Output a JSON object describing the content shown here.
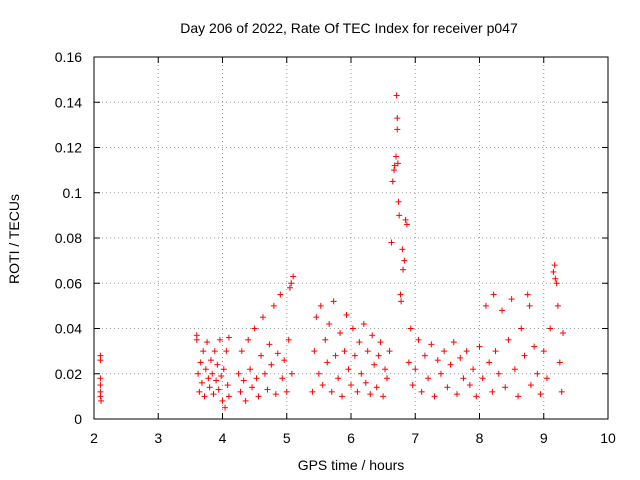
{
  "chart_data": {
    "type": "scatter",
    "title": "Day 206 of 2022, Rate Of TEC Index for receiver p047",
    "xlabel": "GPS time / hours",
    "ylabel": "ROTI / TECUs",
    "xlim": [
      2,
      10
    ],
    "ylim": [
      0,
      0.16
    ],
    "xticks": [
      2,
      3,
      4,
      5,
      6,
      7,
      8,
      9,
      10
    ],
    "xtick_labels": [
      "2",
      "3",
      "4",
      "5",
      "6",
      "7",
      "8",
      "9",
      "10"
    ],
    "yticks": [
      0,
      0.02,
      0.04,
      0.06,
      0.08,
      0.1,
      0.12,
      0.14,
      0.16
    ],
    "ytick_labels": [
      "0",
      "0.02",
      "0.04",
      "0.06",
      "0.08",
      "0.1",
      "0.12",
      "0.14",
      "0.16"
    ],
    "grid": true,
    "marker": "+",
    "marker_color": "#ff0000",
    "series": [
      {
        "name": "ROTI",
        "points": [
          [
            2.1,
            0.028
          ],
          [
            2.1,
            0.026
          ],
          [
            2.1,
            0.018
          ],
          [
            2.1,
            0.015
          ],
          [
            2.1,
            0.012
          ],
          [
            2.1,
            0.01
          ],
          [
            2.11,
            0.008
          ],
          [
            3.6,
            0.037
          ],
          [
            3.6,
            0.035
          ],
          [
            3.62,
            0.02
          ],
          [
            3.64,
            0.012
          ],
          [
            3.66,
            0.025
          ],
          [
            3.68,
            0.016
          ],
          [
            3.7,
            0.03
          ],
          [
            3.72,
            0.01
          ],
          [
            3.74,
            0.022
          ],
          [
            3.76,
            0.034
          ],
          [
            3.78,
            0.018
          ],
          [
            3.8,
            0.014
          ],
          [
            3.82,
            0.026
          ],
          [
            3.84,
            0.02
          ],
          [
            3.86,
            0.011
          ],
          [
            3.88,
            0.03
          ],
          [
            3.9,
            0.017
          ],
          [
            3.92,
            0.024
          ],
          [
            3.94,
            0.013
          ],
          [
            3.96,
            0.035
          ],
          [
            3.98,
            0.019
          ],
          [
            4.0,
            0.008
          ],
          [
            4.02,
            0.022
          ],
          [
            4.04,
            0.005
          ],
          [
            4.06,
            0.03
          ],
          [
            4.08,
            0.015
          ],
          [
            4.1,
            0.036
          ],
          [
            4.1,
            0.01
          ],
          [
            4.25,
            0.02
          ],
          [
            4.28,
            0.012
          ],
          [
            4.3,
            0.03
          ],
          [
            4.33,
            0.017
          ],
          [
            4.36,
            0.008
          ],
          [
            4.4,
            0.035
          ],
          [
            4.43,
            0.022
          ],
          [
            4.46,
            0.014
          ],
          [
            4.5,
            0.04
          ],
          [
            4.53,
            0.018
          ],
          [
            4.56,
            0.01
          ],
          [
            4.6,
            0.028
          ],
          [
            4.63,
            0.045
          ],
          [
            4.66,
            0.02
          ],
          [
            4.7,
            0.013
          ],
          [
            4.73,
            0.033
          ],
          [
            4.76,
            0.024
          ],
          [
            4.8,
            0.05
          ],
          [
            4.83,
            0.011
          ],
          [
            4.86,
            0.029
          ],
          [
            4.9,
            0.055
          ],
          [
            4.93,
            0.018
          ],
          [
            4.96,
            0.026
          ],
          [
            5.0,
            0.012
          ],
          [
            5.03,
            0.035
          ],
          [
            5.05,
            0.058
          ],
          [
            5.07,
            0.06
          ],
          [
            5.08,
            0.02
          ],
          [
            5.1,
            0.063
          ],
          [
            5.4,
            0.012
          ],
          [
            5.43,
            0.03
          ],
          [
            5.46,
            0.045
          ],
          [
            5.5,
            0.02
          ],
          [
            5.53,
            0.05
          ],
          [
            5.56,
            0.015
          ],
          [
            5.6,
            0.035
          ],
          [
            5.63,
            0.025
          ],
          [
            5.66,
            0.042
          ],
          [
            5.7,
            0.012
          ],
          [
            5.73,
            0.052
          ],
          [
            5.76,
            0.028
          ],
          [
            5.8,
            0.018
          ],
          [
            5.83,
            0.038
          ],
          [
            5.86,
            0.01
          ],
          [
            5.9,
            0.03
          ],
          [
            5.93,
            0.046
          ],
          [
            5.96,
            0.022
          ],
          [
            6.0,
            0.015
          ],
          [
            6.03,
            0.04
          ],
          [
            6.06,
            0.028
          ],
          [
            6.1,
            0.012
          ],
          [
            6.13,
            0.034
          ],
          [
            6.16,
            0.02
          ],
          [
            6.2,
            0.042
          ],
          [
            6.23,
            0.016
          ],
          [
            6.26,
            0.03
          ],
          [
            6.3,
            0.011
          ],
          [
            6.33,
            0.037
          ],
          [
            6.36,
            0.024
          ],
          [
            6.4,
            0.014
          ],
          [
            6.43,
            0.028
          ],
          [
            6.46,
            0.034
          ],
          [
            6.5,
            0.01
          ],
          [
            6.53,
            0.022
          ],
          [
            6.56,
            0.018
          ],
          [
            6.6,
            0.03
          ],
          [
            6.63,
            0.078
          ],
          [
            6.65,
            0.105
          ],
          [
            6.67,
            0.11
          ],
          [
            6.68,
            0.112
          ],
          [
            6.7,
            0.116
          ],
          [
            6.71,
            0.143
          ],
          [
            6.72,
            0.133
          ],
          [
            6.72,
            0.128
          ],
          [
            6.73,
            0.113
          ],
          [
            6.74,
            0.096
          ],
          [
            6.75,
            0.09
          ],
          [
            6.77,
            0.055
          ],
          [
            6.78,
            0.052
          ],
          [
            6.8,
            0.075
          ],
          [
            6.81,
            0.066
          ],
          [
            6.83,
            0.07
          ],
          [
            6.85,
            0.088
          ],
          [
            6.87,
            0.086
          ],
          [
            6.9,
            0.025
          ],
          [
            6.93,
            0.04
          ],
          [
            6.96,
            0.015
          ],
          [
            7.0,
            0.022
          ],
          [
            7.05,
            0.035
          ],
          [
            7.1,
            0.012
          ],
          [
            7.15,
            0.028
          ],
          [
            7.2,
            0.018
          ],
          [
            7.25,
            0.033
          ],
          [
            7.3,
            0.01
          ],
          [
            7.35,
            0.026
          ],
          [
            7.4,
            0.02
          ],
          [
            7.45,
            0.03
          ],
          [
            7.5,
            0.014
          ],
          [
            7.55,
            0.024
          ],
          [
            7.6,
            0.034
          ],
          [
            7.65,
            0.011
          ],
          [
            7.7,
            0.027
          ],
          [
            7.75,
            0.018
          ],
          [
            7.8,
            0.03
          ],
          [
            7.85,
            0.015
          ],
          [
            7.9,
            0.022
          ],
          [
            7.95,
            0.01
          ],
          [
            8.0,
            0.032
          ],
          [
            8.05,
            0.018
          ],
          [
            8.1,
            0.05
          ],
          [
            8.15,
            0.025
          ],
          [
            8.2,
            0.012
          ],
          [
            8.22,
            0.055
          ],
          [
            8.25,
            0.03
          ],
          [
            8.3,
            0.02
          ],
          [
            8.35,
            0.048
          ],
          [
            8.4,
            0.014
          ],
          [
            8.45,
            0.035
          ],
          [
            8.5,
            0.053
          ],
          [
            8.55,
            0.022
          ],
          [
            8.6,
            0.01
          ],
          [
            8.65,
            0.04
          ],
          [
            8.7,
            0.028
          ],
          [
            8.75,
            0.055
          ],
          [
            8.78,
            0.05
          ],
          [
            8.8,
            0.015
          ],
          [
            8.85,
            0.032
          ],
          [
            8.9,
            0.02
          ],
          [
            8.95,
            0.011
          ],
          [
            9.0,
            0.03
          ],
          [
            9.05,
            0.018
          ],
          [
            9.1,
            0.04
          ],
          [
            9.15,
            0.065
          ],
          [
            9.17,
            0.068
          ],
          [
            9.18,
            0.062
          ],
          [
            9.2,
            0.06
          ],
          [
            9.22,
            0.05
          ],
          [
            9.25,
            0.025
          ],
          [
            9.28,
            0.012
          ],
          [
            9.3,
            0.038
          ]
        ]
      }
    ]
  }
}
